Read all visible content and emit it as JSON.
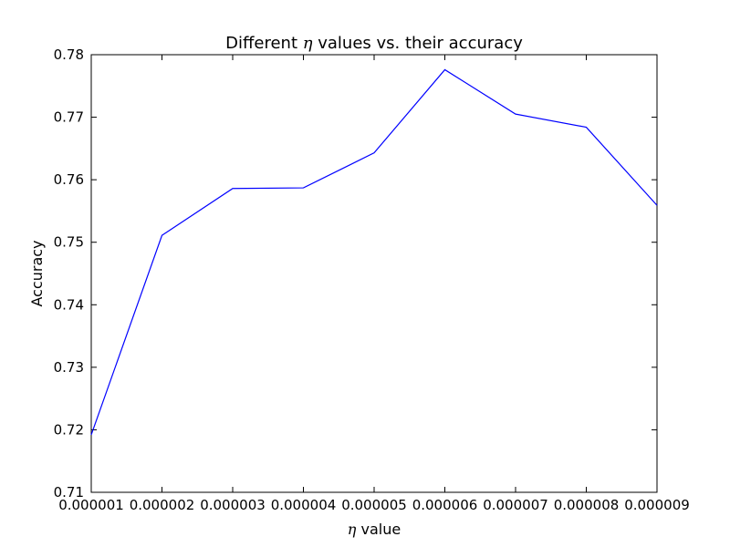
{
  "chart_data": {
    "type": "line",
    "title_prefix": "Different ",
    "title_symbol": "η",
    "title_suffix": " values vs. their accuracy",
    "xlabel_symbol": "η",
    "xlabel_suffix": " value",
    "ylabel": "Accuracy",
    "x": [
      1e-06,
      2e-06,
      3e-06,
      4e-06,
      5e-06,
      6e-06,
      7e-06,
      8e-06,
      9e-06
    ],
    "xtick_labels": [
      "0.000001",
      "0.000002",
      "0.000003",
      "0.000004",
      "0.000005",
      "0.000006",
      "0.000007",
      "0.000008",
      "0.000009"
    ],
    "yticks": [
      0.71,
      0.72,
      0.73,
      0.74,
      0.75,
      0.76,
      0.77,
      0.78
    ],
    "ytick_labels": [
      "0.71",
      "0.72",
      "0.73",
      "0.74",
      "0.75",
      "0.76",
      "0.77",
      "0.78"
    ],
    "series": [
      {
        "values": [
          0.7192,
          0.7511,
          0.7586,
          0.7587,
          0.7643,
          0.7776,
          0.7705,
          0.7684,
          0.7559
        ],
        "color": "#0000ff"
      }
    ],
    "xlim": [
      1e-06,
      9e-06
    ],
    "ylim": [
      0.71,
      0.78
    ],
    "grid": false,
    "legend": "none"
  }
}
